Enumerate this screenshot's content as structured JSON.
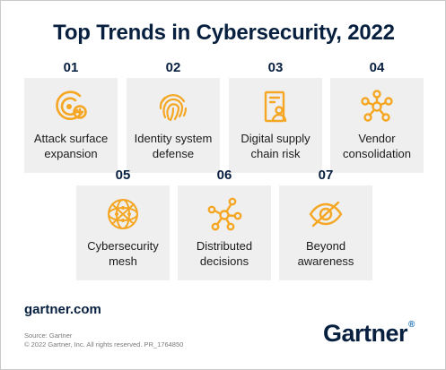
{
  "title": "Top Trends in Cybersecurity, 2022",
  "accent_color": "#f5a623",
  "trends": [
    {
      "number": "01",
      "line1": "Attack surface",
      "line2": "expansion",
      "icon": "attack-surface-icon"
    },
    {
      "number": "02",
      "line1": "Identity system",
      "line2": "defense",
      "icon": "fingerprint-icon"
    },
    {
      "number": "03",
      "line1": "Digital supply",
      "line2": "chain risk",
      "icon": "supply-chain-icon"
    },
    {
      "number": "04",
      "line1": "Vendor",
      "line2": "consolidation",
      "icon": "network-nodes-icon"
    },
    {
      "number": "05",
      "line1": "Cybersecurity",
      "line2": "mesh",
      "icon": "mesh-sphere-icon"
    },
    {
      "number": "06",
      "line1": "Distributed",
      "line2": "decisions",
      "icon": "distributed-nodes-icon"
    },
    {
      "number": "07",
      "line1": "Beyond",
      "line2": "awareness",
      "icon": "eye-slash-icon"
    }
  ],
  "footer": {
    "site": "gartner.com",
    "source_line1": "Source: Gartner",
    "source_line2": "© 2022 Gartner, Inc. All rights reserved. PR_1764850",
    "logo": "Gartner",
    "logo_mark": "®"
  }
}
